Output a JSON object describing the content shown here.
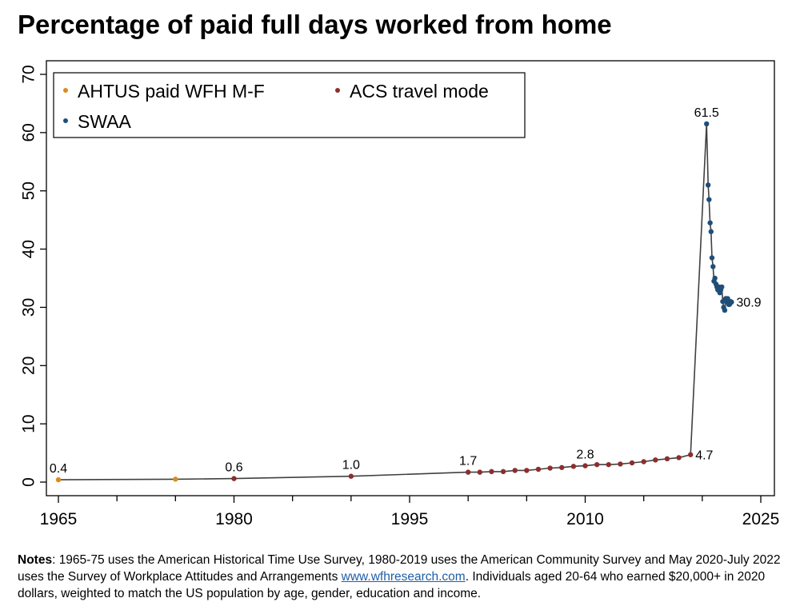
{
  "chart_data": {
    "type": "line",
    "title": "Percentage of paid full days worked from home",
    "xlim": [
      1965,
      2025
    ],
    "ylim": [
      0,
      70
    ],
    "x_ticks": [
      1965,
      1980,
      1995,
      2010,
      2025
    ],
    "x_minor_ticks": [
      1970,
      1975,
      1985,
      1990,
      2000,
      2005,
      2015,
      2020
    ],
    "y_ticks": [
      0,
      10,
      20,
      30,
      40,
      50,
      60,
      70
    ],
    "grid": false,
    "line_color": "#404040",
    "legend_position": "top-left",
    "legend_items": [
      {
        "label": "AHTUS paid WFH M-F",
        "color": "#d98c1f"
      },
      {
        "label": "ACS travel mode",
        "color": "#8c2e2e"
      },
      {
        "label": "SWAA",
        "color": "#1f4e79"
      }
    ],
    "series": [
      {
        "name": "AHTUS paid WFH M-F",
        "color": "#d98c1f",
        "points": [
          [
            1965,
            0.4
          ],
          [
            1975,
            0.5
          ]
        ]
      },
      {
        "name": "ACS travel mode",
        "color": "#8c2e2e",
        "points": [
          [
            1980,
            0.6
          ],
          [
            1990,
            1.0
          ],
          [
            2000,
            1.7
          ],
          [
            2001,
            1.7
          ],
          [
            2002,
            1.8
          ],
          [
            2003,
            1.8
          ],
          [
            2004,
            2.0
          ],
          [
            2005,
            2.0
          ],
          [
            2006,
            2.2
          ],
          [
            2007,
            2.4
          ],
          [
            2008,
            2.5
          ],
          [
            2009,
            2.7
          ],
          [
            2010,
            2.8
          ],
          [
            2011,
            3.0
          ],
          [
            2012,
            3.0
          ],
          [
            2013,
            3.1
          ],
          [
            2014,
            3.3
          ],
          [
            2015,
            3.5
          ],
          [
            2016,
            3.8
          ],
          [
            2017,
            4.0
          ],
          [
            2018,
            4.2
          ],
          [
            2019,
            4.7
          ]
        ]
      },
      {
        "name": "SWAA",
        "color": "#1f4e79",
        "points": [
          [
            2020.37,
            61.5
          ],
          [
            2020.5,
            51.0
          ],
          [
            2020.58,
            48.5
          ],
          [
            2020.67,
            44.5
          ],
          [
            2020.75,
            43.0
          ],
          [
            2020.83,
            38.5
          ],
          [
            2020.92,
            37.0
          ],
          [
            2021.0,
            34.5
          ],
          [
            2021.08,
            35.0
          ],
          [
            2021.17,
            34.0
          ],
          [
            2021.25,
            33.5
          ],
          [
            2021.33,
            33.0
          ],
          [
            2021.42,
            33.5
          ],
          [
            2021.5,
            32.5
          ],
          [
            2021.58,
            33.0
          ],
          [
            2021.67,
            33.5
          ],
          [
            2021.75,
            31.0
          ],
          [
            2021.83,
            30.0
          ],
          [
            2021.92,
            29.5
          ],
          [
            2022.0,
            31.5
          ],
          [
            2022.08,
            31.0
          ],
          [
            2022.17,
            31.5
          ],
          [
            2022.25,
            30.5
          ],
          [
            2022.33,
            30.5
          ],
          [
            2022.42,
            31.0
          ],
          [
            2022.5,
            30.9
          ]
        ]
      }
    ],
    "annotations": [
      {
        "text": "0.4",
        "x": 1965,
        "y": 0.4,
        "pos": "above"
      },
      {
        "text": "0.6",
        "x": 1980,
        "y": 0.6,
        "pos": "above"
      },
      {
        "text": "1.0",
        "x": 1990,
        "y": 1.0,
        "pos": "above"
      },
      {
        "text": "1.7",
        "x": 2000,
        "y": 1.7,
        "pos": "above"
      },
      {
        "text": "2.8",
        "x": 2010,
        "y": 2.8,
        "pos": "above"
      },
      {
        "text": "4.7",
        "x": 2019,
        "y": 4.7,
        "pos": "right"
      },
      {
        "text": "61.5",
        "x": 2020.37,
        "y": 61.5,
        "pos": "above"
      },
      {
        "text": "30.9",
        "x": 2022.5,
        "y": 30.9,
        "pos": "right"
      }
    ]
  },
  "notes": {
    "label": "Notes",
    "text_before_link": ": 1965-75 uses the American Historical Time Use Survey, 1980-2019 uses the American Community Survey and May 2020-July 2022 uses the Survey of Workplace Attitudes and Arrangements ",
    "link_text": "www.wfhresearch.com",
    "text_after_link": ". Individuals aged 20-64 who earned $20,000+ in 2020 dollars, weighted to match the US population by age, gender, education and income."
  }
}
